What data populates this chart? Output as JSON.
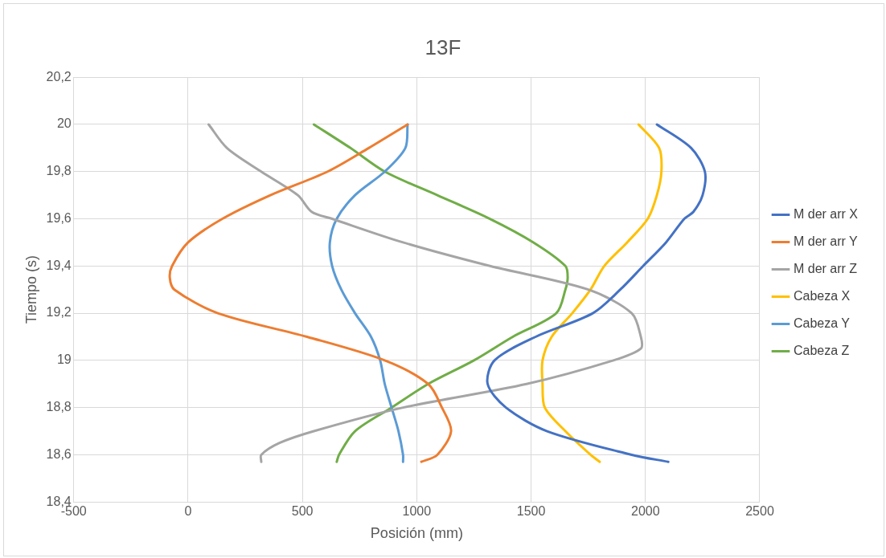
{
  "chart_data": {
    "type": "line",
    "title": "13F",
    "xlabel": "Posición (mm)",
    "ylabel": "Tiempo (s)",
    "xlim": [
      -500,
      2500
    ],
    "xticks": [
      -500,
      0,
      500,
      1000,
      1500,
      2000,
      2500
    ],
    "ylim": [
      18.4,
      20.2
    ],
    "yticks": [
      {
        "value": 18.4,
        "label": "18,4"
      },
      {
        "value": 18.6,
        "label": "18,6"
      },
      {
        "value": 18.8,
        "label": "18,8"
      },
      19,
      {
        "value": 19.2,
        "label": "19,2"
      },
      {
        "value": 19.4,
        "label": "19,4"
      },
      {
        "value": 19.6,
        "label": "19,6"
      },
      {
        "value": 19.8,
        "label": "19,8"
      },
      20,
      {
        "value": 20.2,
        "label": "20,2"
      }
    ],
    "grid": true,
    "legend": "right",
    "marker": "none",
    "line_style": "solid",
    "series": [
      {
        "name": "M der arr X",
        "color": "#4472c4",
        "x": [
          2100,
          1940,
          1570,
          1390,
          1310,
          1340,
          1520,
          1770,
          1890,
          1990,
          2090,
          2170,
          2210,
          2250,
          2260,
          2200,
          2050
        ],
        "values": [
          18.57,
          18.6,
          18.7,
          18.8,
          18.9,
          19.0,
          19.1,
          19.2,
          19.3,
          19.4,
          19.5,
          19.6,
          19.63,
          19.7,
          19.8,
          19.9,
          20.0
        ]
      },
      {
        "name": "M der arr Y",
        "color": "#ed7d31",
        "x": [
          1020,
          1090,
          1150,
          1110,
          1050,
          860,
          520,
          130,
          -60,
          -80,
          -70,
          0,
          150,
          360,
          610,
          790,
          960
        ],
        "values": [
          18.57,
          18.6,
          18.7,
          18.8,
          18.9,
          19.0,
          19.1,
          19.2,
          19.3,
          19.35,
          19.4,
          19.5,
          19.6,
          19.7,
          19.8,
          19.9,
          20.0
        ]
      },
      {
        "name": "M der arr Z",
        "color": "#a5a5a5",
        "x": [
          320,
          320,
          400,
          550,
          940,
          1480,
          1860,
          1980,
          1980,
          1940,
          1750,
          1320,
          940,
          630,
          540,
          480,
          320,
          170,
          90
        ],
        "values": [
          18.57,
          18.6,
          18.65,
          18.7,
          18.8,
          18.9,
          19.0,
          19.05,
          19.1,
          19.2,
          19.3,
          19.4,
          19.5,
          19.6,
          19.63,
          19.7,
          19.8,
          19.9,
          20.0
        ]
      },
      {
        "name": "Cabeza X",
        "color": "#ffc000",
        "x": [
          1800,
          1760,
          1650,
          1560,
          1550,
          1550,
          1590,
          1680,
          1760,
          1820,
          1920,
          2010,
          2050,
          2070,
          2060,
          1970
        ],
        "values": [
          18.57,
          18.6,
          18.7,
          18.8,
          18.9,
          19.0,
          19.1,
          19.2,
          19.3,
          19.4,
          19.5,
          19.6,
          19.7,
          19.8,
          19.9,
          20.0
        ]
      },
      {
        "name": "Cabeza Y",
        "color": "#5b9bd5",
        "x": [
          940,
          940,
          920,
          890,
          860,
          840,
          800,
          730,
          670,
          630,
          620,
          650,
          730,
          860,
          950,
          960
        ],
        "values": [
          18.57,
          18.6,
          18.7,
          18.8,
          18.9,
          19.0,
          19.1,
          19.2,
          19.3,
          19.4,
          19.5,
          19.6,
          19.7,
          19.8,
          19.9,
          20.0
        ]
      },
      {
        "name": "Cabeza Z",
        "color": "#70ad47",
        "x": [
          650,
          660,
          730,
          890,
          1050,
          1250,
          1420,
          1610,
          1650,
          1660,
          1650,
          1510,
          1320,
          1090,
          860,
          710,
          550
        ],
        "values": [
          18.57,
          18.6,
          18.7,
          18.8,
          18.9,
          19.0,
          19.1,
          19.2,
          19.3,
          19.35,
          19.4,
          19.5,
          19.6,
          19.7,
          19.8,
          19.9,
          20.0
        ]
      }
    ]
  }
}
